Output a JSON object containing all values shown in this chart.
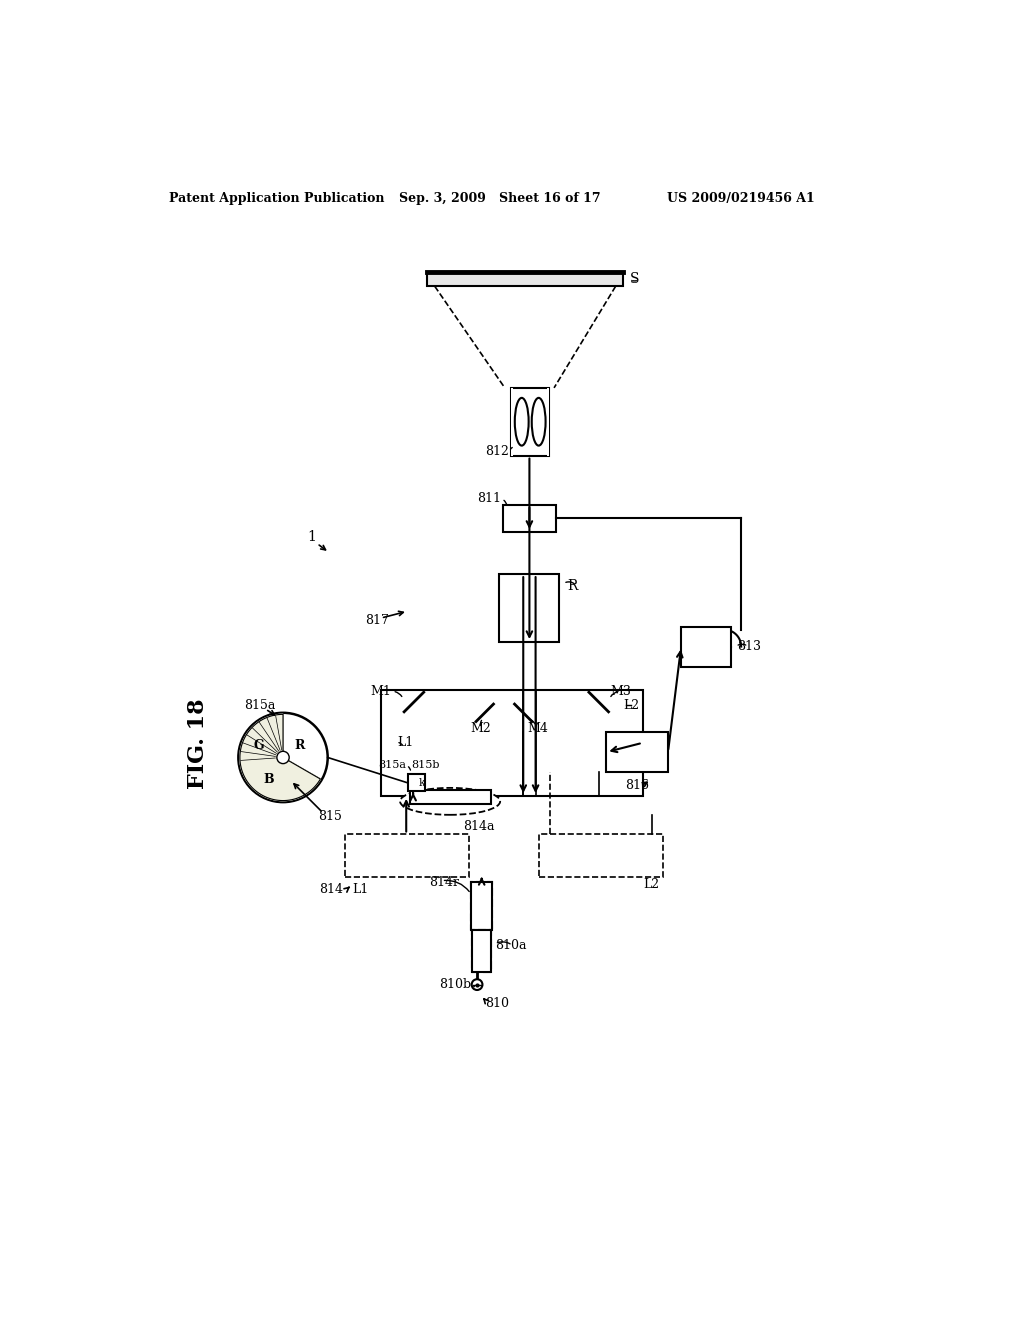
{
  "header_left": "Patent Application Publication",
  "header_center": "Sep. 3, 2009   Sheet 16 of 17",
  "header_right": "US 2009/0219456 A1",
  "fig_label": "FIG. 18",
  "background": "#ffffff"
}
